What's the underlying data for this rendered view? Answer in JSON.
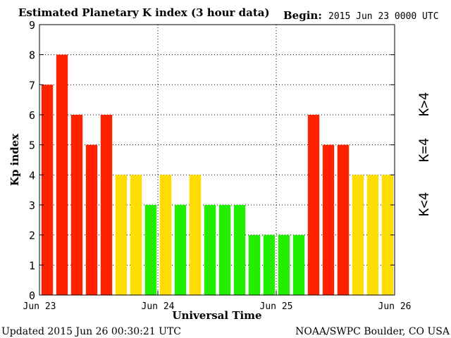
{
  "chart_data": {
    "type": "bar",
    "title": "Estimated Planetary K index (3 hour data)",
    "begin_label": "Begin:",
    "begin_value": "2015 Jun 23 0000 UTC",
    "xlabel": "Universal Time",
    "ylabel": "Kp index",
    "ylim": [
      0,
      9
    ],
    "yticks": [
      "0",
      "1",
      "2",
      "3",
      "4",
      "5",
      "6",
      "7",
      "8",
      "9"
    ],
    "x_tick_labels": [
      "Jun 23",
      "Jun 24",
      "Jun 25",
      "Jun 26"
    ],
    "values": [
      7,
      8,
      6,
      5,
      6,
      4,
      4,
      3,
      4,
      3,
      4,
      3,
      3,
      3,
      2,
      2,
      2,
      2,
      6,
      5,
      5,
      4,
      4,
      4
    ],
    "color_rule": {
      "below_4": "#22ee00",
      "equal_4": "#ffdd00",
      "above_4": "#ff2200"
    },
    "legend": [
      {
        "label": "K>4",
        "color": "#ff2200"
      },
      {
        "label": "K=4",
        "color": "#ffdd00"
      },
      {
        "label": "K<4",
        "color": "#22ee00"
      }
    ],
    "grid": true,
    "legend_position": "right"
  },
  "footer": {
    "updated": "Updated 2015 Jun 26 00:30:21 UTC",
    "source": "NOAA/SWPC Boulder, CO USA"
  }
}
